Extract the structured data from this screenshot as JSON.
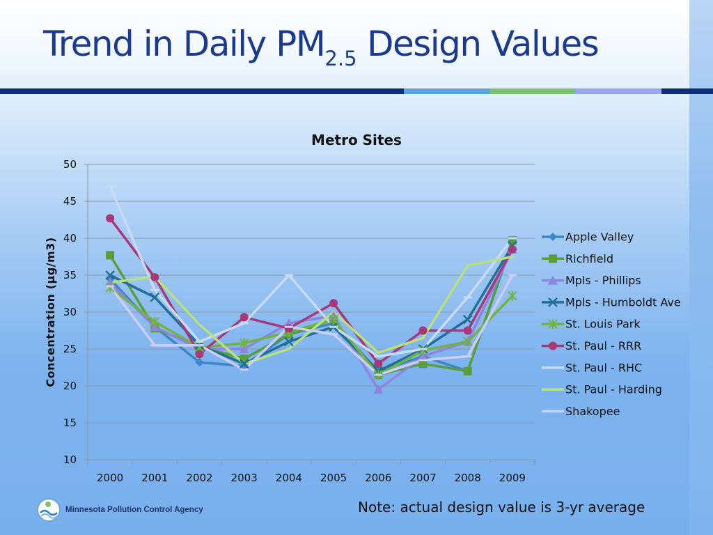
{
  "slide": {
    "title_prefix": "Trend in Daily PM",
    "title_subscript": "2.5",
    "title_suffix": " Design Values",
    "agency": "Minnesota Pollution Control Agency",
    "note": "Note: actual design value is 3-yr average",
    "accent_colors": [
      "#0d2f7a",
      "#58a4de",
      "#7cc26c",
      "#9aa6f0"
    ]
  },
  "chart_data": {
    "type": "line",
    "title": "Metro Sites",
    "xlabel": "",
    "ylabel": "Concentration (µg/m3)",
    "ylim": [
      10,
      50
    ],
    "yticks": [
      10,
      15,
      20,
      25,
      30,
      35,
      40,
      45,
      50
    ],
    "grid": true,
    "legend_position": "right",
    "categories": [
      "2000",
      "2001",
      "2002",
      "2003",
      "2004",
      "2005",
      "2006",
      "2007",
      "2008",
      "2009"
    ],
    "series": [
      {
        "name": "Apple Valley",
        "color": "#3b87c8",
        "marker": "diamond",
        "values": [
          34.5,
          28.0,
          23.2,
          22.7,
          27.0,
          28.5,
          22.0,
          24.0,
          22.0,
          39.5
        ]
      },
      {
        "name": "Richfield",
        "color": "#5a9e3c",
        "marker": "square",
        "values": [
          37.7,
          27.8,
          25.3,
          23.7,
          27.0,
          29.0,
          21.5,
          23.0,
          22.0,
          39.7
        ]
      },
      {
        "name": "Mpls - Phillips",
        "color": "#8f84e0",
        "marker": "triangle",
        "values": [
          34.0,
          28.0,
          25.0,
          25.0,
          28.5,
          29.5,
          19.5,
          24.0,
          26.0,
          38.5
        ]
      },
      {
        "name": "Mpls - Humboldt Ave",
        "color": "#1f6f96",
        "marker": "x",
        "values": [
          35.0,
          32.0,
          25.5,
          23.0,
          26.0,
          28.0,
          22.0,
          25.0,
          29.0,
          39.0
        ]
      },
      {
        "name": "St. Louis Park",
        "color": "#74b23e",
        "marker": "star",
        "values": [
          33.3,
          28.7,
          25.2,
          25.8,
          27.3,
          29.0,
          21.5,
          24.8,
          26.0,
          32.2
        ]
      },
      {
        "name": "St. Paul - RRR",
        "color": "#a8387a",
        "marker": "circle",
        "values": [
          42.7,
          34.7,
          24.3,
          29.3,
          27.8,
          31.2,
          23.0,
          27.5,
          27.5,
          38.5
        ]
      },
      {
        "name": "St. Paul - RHC",
        "color": "#c7dcf2",
        "marker": "dash",
        "values": [
          47.0,
          33.0,
          26.0,
          28.5,
          35.0,
          28.0,
          24.0,
          25.0,
          32.0,
          40.0
        ]
      },
      {
        "name": "St. Paul - Harding",
        "color": "#b9e07a",
        "marker": "none",
        "values": [
          34.0,
          34.8,
          28.3,
          23.0,
          25.0,
          30.0,
          24.5,
          26.5,
          36.3,
          37.5
        ]
      },
      {
        "name": "Shakopee",
        "color": "#cfcdfb",
        "marker": "dash",
        "values": [
          33.5,
          25.5,
          25.5,
          22.2,
          28.0,
          27.0,
          21.5,
          23.5,
          24.0,
          35.0
        ]
      }
    ]
  }
}
